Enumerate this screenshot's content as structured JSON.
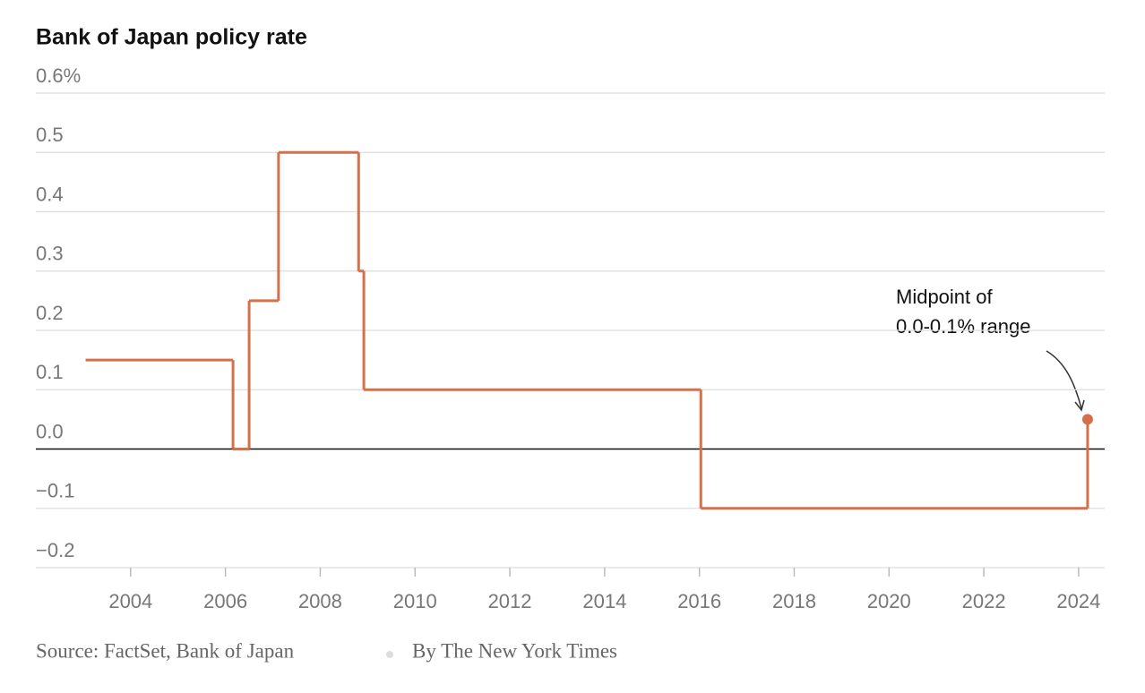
{
  "chart_data": {
    "type": "step",
    "title": "Bank of Japan policy rate",
    "x": [
      2003.05,
      2006.16,
      2006.5,
      2007.12,
      2008.81,
      2008.92,
      2016.03,
      2024.19
    ],
    "series": [
      {
        "name": "Policy rate",
        "color": "#d4714a",
        "values": [
          0.15,
          0,
          0.25,
          0.5,
          0.3,
          0.1,
          -0.1,
          0.05
        ]
      }
    ],
    "xlim": [
      2002,
      2024.55
    ],
    "xticks": [
      2004,
      2006,
      2008,
      2010,
      2012,
      2014,
      2016,
      2018,
      2020,
      2022,
      2024
    ],
    "ylim": [
      -0.2,
      0.6
    ],
    "yticks": [
      {
        "value": -0.2,
        "label": "−0.2"
      },
      {
        "value": -0.1,
        "label": "−0.1"
      },
      {
        "value": 0,
        "label": "0.0"
      },
      0.1,
      0.2,
      0.3,
      0.4,
      0.5,
      {
        "value": 0.6,
        "label": "0.6%"
      }
    ],
    "grid": true,
    "annotation": [
      "Midpoint of",
      "0.0-0.1% range"
    ],
    "source": "Source: FactSet, Bank of Japan",
    "credit": "By The New York Times"
  }
}
